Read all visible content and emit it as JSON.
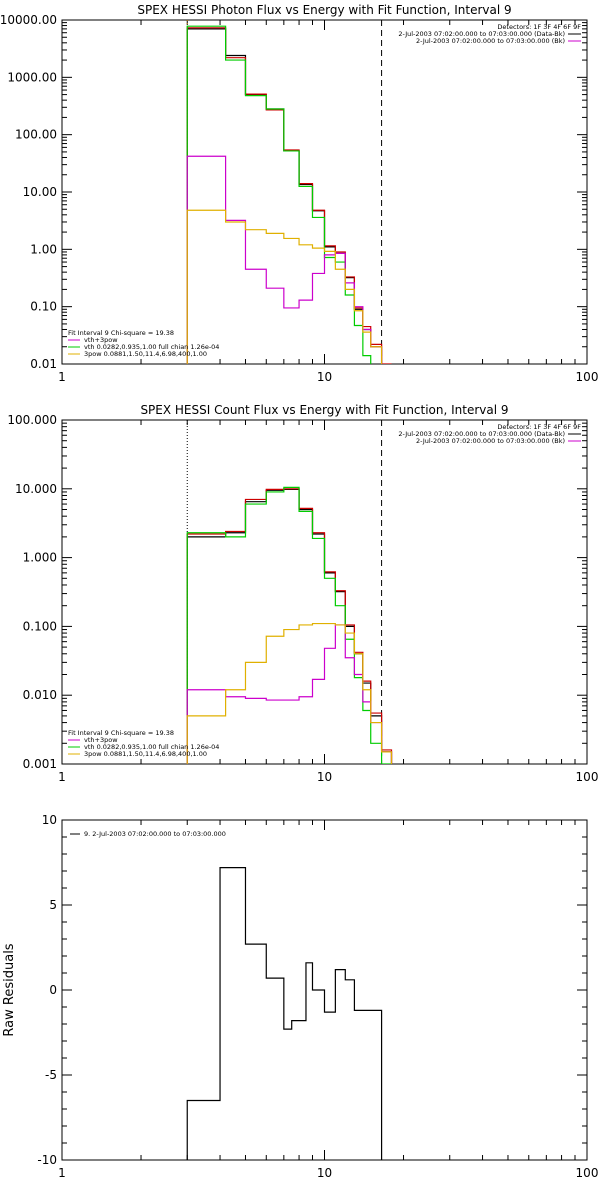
{
  "chart_data": [
    {
      "type": "line",
      "title": "SPEX HESSI Photon Flux vs Energy with Fit Function, Interval 9",
      "xscale": "log",
      "yscale": "log",
      "xlim": [
        1,
        100
      ],
      "ylim": [
        0.01,
        10000
      ],
      "xticks": [
        {
          "v": 1,
          "label": "1"
        },
        {
          "v": 10,
          "label": "10"
        },
        {
          "v": 100,
          "label": "100"
        }
      ],
      "yticks": [
        {
          "v": 0.01,
          "label": "0.01"
        },
        {
          "v": 0.1,
          "label": "0.10"
        },
        {
          "v": 1,
          "label": "1.00"
        },
        {
          "v": 10,
          "label": "10.00"
        },
        {
          "v": 100,
          "label": "100.00"
        },
        {
          "v": 1000,
          "label": "1000.00"
        },
        {
          "v": 10000,
          "label": "10000.00"
        }
      ],
      "vlines": [
        {
          "x": 3.0,
          "style": "dotted",
          "color": "#c88000"
        },
        {
          "x": 16.5,
          "style": "dashed",
          "color": "#000000"
        }
      ],
      "legend_topright": [
        "Detectors: 1F 3F 4F 6F 9F",
        "2-Jul-2003 07:02:00.000 to 07:03:00.000 (Data-Bk)",
        "2-Jul-2003 07:02:00.000 to 07:03:00.000 (Bk)"
      ],
      "legend_topright_colors": [
        "",
        "#000000",
        "#cc00cc"
      ],
      "legend_bottomleft": [
        "Fit Interval 9    Chi-square = 19.38",
        "vth+3pow",
        "vth 0.0282,0.935,1.00  full chian 1.26e-04",
        "3pow 0.0881,1.50,11.4,6.98,400,1.00"
      ],
      "legend_bottomleft_colors": [
        "",
        "#cc00cc",
        "#00cc00",
        "#e0b000"
      ],
      "edges": [
        3.0,
        3.5,
        4.2,
        5.0,
        6.0,
        7.0,
        8.0,
        9.0,
        10.0,
        11.0,
        12.0,
        13.0,
        14.0,
        15.0,
        16.5,
        18.0
      ],
      "series": [
        {
          "color": "#000000",
          "values": [
            7000,
            7000,
            2400,
            500,
            280,
            52,
            13.5,
            4.7,
            1.1,
            0.85,
            0.32,
            0.09,
            0.04,
            0.02,
            0.009
          ]
        },
        {
          "color": "#cc0000",
          "values": [
            7300,
            7300,
            2200,
            510,
            270,
            54,
            14,
            4.8,
            1.15,
            0.9,
            0.33,
            0.095,
            0.045,
            0.022,
            0.01
          ]
        },
        {
          "color": "#00cc00",
          "values": [
            7800,
            7800,
            2000,
            480,
            280,
            52,
            12.5,
            3.6,
            0.72,
            0.6,
            0.16,
            0.047,
            0.014,
            0.009,
            0.009
          ]
        },
        {
          "color": "#cc00cc",
          "values": [
            42,
            42,
            3.2,
            0.45,
            0.21,
            0.095,
            0.13,
            0.38,
            0.8,
            0.85,
            0.26,
            0.1,
            0.04,
            0.02,
            0.009
          ]
        },
        {
          "color": "#e0b000",
          "values": [
            4.8,
            4.8,
            3.0,
            2.2,
            1.9,
            1.55,
            1.2,
            1.05,
            0.92,
            0.45,
            0.2,
            0.085,
            0.036,
            0.02,
            0.009
          ]
        }
      ]
    },
    {
      "type": "line",
      "title": "SPEX HESSI Count Flux vs Energy with Fit Function, Interval 9",
      "xscale": "log",
      "yscale": "log",
      "xlim": [
        1,
        100
      ],
      "ylim": [
        0.001,
        100
      ],
      "xticks": [
        {
          "v": 1,
          "label": "1"
        },
        {
          "v": 10,
          "label": "10"
        },
        {
          "v": 100,
          "label": "100"
        }
      ],
      "yticks": [
        {
          "v": 0.001,
          "label": "0.001"
        },
        {
          "v": 0.01,
          "label": "0.010"
        },
        {
          "v": 0.1,
          "label": "0.100"
        },
        {
          "v": 1,
          "label": "1.000"
        },
        {
          "v": 10,
          "label": "10.000"
        },
        {
          "v": 100,
          "label": "100.000"
        }
      ],
      "vlines": [
        {
          "x": 3.0,
          "style": "dotted",
          "color": "#000000"
        },
        {
          "x": 16.5,
          "style": "dashed",
          "color": "#000000"
        }
      ],
      "legend_topright": [
        "Detectors: 1F 3F 4F 6F 9F",
        "2-Jul-2003 07:02:00.000 to 07:03:00.000 (Data-Bk)",
        "2-Jul-2003 07:02:00.000 to 07:03:00.000 (Bk)"
      ],
      "legend_topright_colors": [
        "",
        "#000000",
        "#cc00cc"
      ],
      "legend_bottomleft": [
        "Fit Interval 9    Chi-square = 19.38",
        "vth+3pow",
        "vth 0.0282,0.935,1.00  full chian 1.26e-04",
        "3pow 0.0881,1.50,11.4,6.98,400,1.00"
      ],
      "legend_bottomleft_colors": [
        "",
        "#cc00cc",
        "#00cc00",
        "#e0b000"
      ],
      "edges": [
        3.0,
        3.5,
        4.2,
        5.0,
        6.0,
        7.0,
        8.0,
        9.0,
        10.0,
        11.0,
        12.0,
        13.0,
        14.0,
        15.0,
        16.5,
        18.0
      ],
      "series": [
        {
          "color": "#000000",
          "values": [
            2.0,
            2.0,
            2.3,
            6.5,
            9.5,
            9.8,
            5.0,
            2.2,
            0.6,
            0.32,
            0.1,
            0.04,
            0.015,
            0.005,
            0.0015
          ]
        },
        {
          "color": "#cc0000",
          "values": [
            2.2,
            2.2,
            2.4,
            7.0,
            9.8,
            10.0,
            5.2,
            2.3,
            0.62,
            0.33,
            0.105,
            0.042,
            0.016,
            0.0055,
            0.0016
          ]
        },
        {
          "color": "#00cc00",
          "values": [
            2.3,
            2.3,
            2.0,
            6.0,
            9.0,
            10.5,
            4.7,
            1.9,
            0.5,
            0.2,
            0.065,
            0.018,
            0.006,
            0.002,
            0.001
          ]
        },
        {
          "color": "#cc00cc",
          "values": [
            0.012,
            0.012,
            0.0095,
            0.009,
            0.0085,
            0.0085,
            0.0095,
            0.017,
            0.048,
            0.105,
            0.035,
            0.02,
            0.008,
            0.004,
            0.0015
          ]
        },
        {
          "color": "#e0b000",
          "values": [
            0.005,
            0.005,
            0.012,
            0.03,
            0.072,
            0.09,
            0.105,
            0.11,
            0.11,
            0.105,
            0.08,
            0.04,
            0.012,
            0.004,
            0.0015
          ]
        }
      ]
    },
    {
      "type": "line",
      "title": "",
      "xscale": "log",
      "yscale": "linear",
      "xlim": [
        1,
        100
      ],
      "ylim": [
        -10,
        10
      ],
      "ylabel": "Raw Residuals",
      "xticks": [
        {
          "v": 1,
          "label": "1"
        },
        {
          "v": 10,
          "label": "10"
        },
        {
          "v": 100,
          "label": "100"
        }
      ],
      "yticks": [
        {
          "v": -10,
          "label": "-10"
        },
        {
          "v": -5,
          "label": "-5"
        },
        {
          "v": 0,
          "label": "0"
        },
        {
          "v": 5,
          "label": "5"
        },
        {
          "v": 10,
          "label": "10"
        }
      ],
      "legend_topleft": "9.  2-Jul-2003 07:02:00.000 to 07:03:00.000",
      "edges": [
        3.0,
        4.0,
        5.0,
        6.0,
        7.0,
        7.5,
        8.5,
        9.0,
        10.0,
        11.0,
        12.0,
        13.0,
        14.0,
        15.0,
        16.5
      ],
      "series": [
        {
          "color": "#000000",
          "values": [
            -6.5,
            7.2,
            2.7,
            0.7,
            -2.3,
            -1.8,
            1.6,
            0.0,
            -1.3,
            1.2,
            0.6,
            -1.2,
            -1.2,
            -1.2
          ]
        }
      ]
    }
  ]
}
